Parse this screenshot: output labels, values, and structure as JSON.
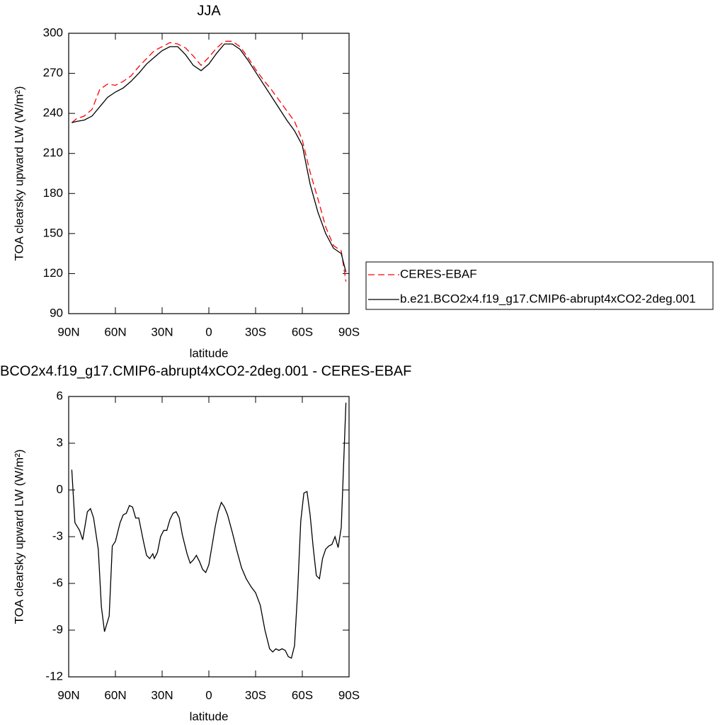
{
  "chart_data": [
    {
      "type": "line",
      "title": "JJA",
      "x_label": "latitude",
      "y_label": "TOA clearsky upward LW (W/m²)",
      "x": [
        88,
        85,
        80,
        75,
        70,
        65,
        60,
        55,
        50,
        45,
        40,
        35,
        30,
        25,
        20,
        15,
        10,
        5,
        0,
        -5,
        -10,
        -15,
        -20,
        -25,
        -30,
        -35,
        -40,
        -45,
        -50,
        -55,
        -60,
        -65,
        -70,
        -75,
        -80,
        -85,
        -88
      ],
      "series": [
        {
          "name": "CERES-EBAF",
          "color": "#ff0000",
          "line_style": "dashed",
          "values": [
            233,
            236,
            238,
            243,
            258,
            262,
            261,
            264,
            268,
            275,
            281,
            287,
            290,
            293,
            292,
            289,
            283,
            276,
            282,
            289,
            294,
            294,
            290,
            282,
            273,
            265,
            258,
            250,
            242,
            234,
            220,
            196,
            176,
            155,
            141,
            137,
            114
          ]
        },
        {
          "name": "b.e21.BCO2x4.f19_g17.CMIP6-abrupt4xCO2-2deg.001",
          "color": "#000000",
          "line_style": "solid",
          "values": [
            233,
            234,
            235,
            238,
            245,
            252,
            256,
            259,
            264,
            270,
            277,
            282,
            287,
            290,
            290,
            284,
            276,
            272,
            277,
            285,
            292,
            292,
            288,
            280,
            271,
            262,
            253,
            244,
            235,
            227,
            216,
            187,
            166,
            150,
            139,
            135,
            121
          ]
        }
      ],
      "xlim": [
        90,
        -90
      ],
      "xticks": [
        {
          "value": 90,
          "label": "90N"
        },
        {
          "value": 60,
          "label": "60N"
        },
        {
          "value": 30,
          "label": "30N"
        },
        0,
        {
          "value": -30,
          "label": "30S"
        },
        {
          "value": -60,
          "label": "60S"
        },
        {
          "value": -90,
          "label": "90S"
        }
      ],
      "ylim": [
        90,
        300
      ],
      "yticks": [
        90,
        120,
        150,
        180,
        210,
        240,
        270,
        300
      ],
      "legend": "right"
    },
    {
      "type": "line",
      "title": "BCO2x4.f19_g17.CMIP6-abrupt4xCO2-2deg.001 - CERES-EBAF",
      "x_label": "latitude",
      "y_label": "TOA clearsky upward LW (W/m²)",
      "x": [
        88,
        86,
        83,
        81,
        78,
        76,
        74,
        71,
        69,
        67,
        64,
        62,
        60,
        57,
        55,
        53,
        51,
        49,
        47,
        45,
        42,
        40,
        38,
        36,
        35,
        33,
        31,
        29,
        27,
        25,
        23,
        21,
        19,
        17,
        14,
        12,
        10,
        8,
        6,
        4,
        2,
        0,
        -2,
        -4,
        -6,
        -8,
        -10,
        -12,
        -15,
        -18,
        -21,
        -24,
        -27,
        -30,
        -33,
        -36,
        -39,
        -41,
        -43,
        -45,
        -47,
        -49,
        -51,
        -53,
        -55,
        -57,
        -59,
        -61,
        -63,
        -65,
        -67,
        -69,
        -71,
        -73,
        -75,
        -77,
        -79,
        -81,
        -83,
        -85,
        -88
      ],
      "values": [
        1.3,
        -2.1,
        -2.6,
        -3.2,
        -1.4,
        -1.2,
        -1.8,
        -3.8,
        -7.5,
        -9.1,
        -8.1,
        -3.6,
        -3.3,
        -2.1,
        -1.6,
        -1.5,
        -1.0,
        -1.1,
        -1.8,
        -1.8,
        -3.3,
        -4.2,
        -4.4,
        -4.1,
        -4.4,
        -4.0,
        -3.0,
        -2.6,
        -2.6,
        -1.9,
        -1.5,
        -1.4,
        -1.8,
        -2.9,
        -4.1,
        -4.7,
        -4.5,
        -4.2,
        -4.6,
        -5.1,
        -5.3,
        -4.8,
        -3.6,
        -2.4,
        -1.4,
        -0.8,
        -1.1,
        -1.6,
        -2.7,
        -3.9,
        -5.0,
        -5.7,
        -6.2,
        -6.6,
        -7.4,
        -9.0,
        -10.2,
        -10.4,
        -10.2,
        -10.3,
        -10.2,
        -10.3,
        -10.7,
        -10.8,
        -10.0,
        -6.5,
        -2.0,
        -0.2,
        -0.1,
        -1.6,
        -3.7,
        -5.5,
        -5.7,
        -4.4,
        -3.8,
        -3.6,
        -3.5,
        -3.0,
        -3.7,
        -2.4,
        5.6
      ],
      "color": "#000000",
      "line_style": "solid",
      "xlim": [
        90,
        -90
      ],
      "xticks": [
        {
          "value": 90,
          "label": "90N"
        },
        {
          "value": 60,
          "label": "60N"
        },
        {
          "value": 30,
          "label": "30N"
        },
        0,
        {
          "value": -30,
          "label": "30S"
        },
        {
          "value": -60,
          "label": "60S"
        },
        {
          "value": -90,
          "label": "90S"
        }
      ],
      "ylim": [
        -12,
        6
      ],
      "yticks": [
        -12,
        -9,
        -6,
        -3,
        0,
        3,
        6
      ]
    }
  ]
}
